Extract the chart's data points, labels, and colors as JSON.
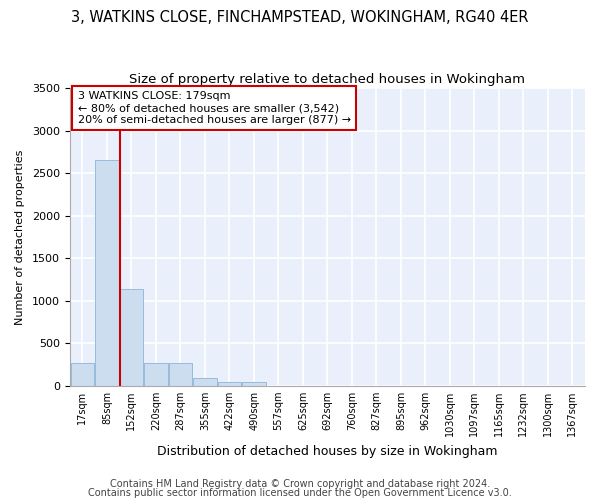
{
  "title1": "3, WATKINS CLOSE, FINCHAMPSTEAD, WOKINGHAM, RG40 4ER",
  "title2": "Size of property relative to detached houses in Wokingham",
  "xlabel": "Distribution of detached houses by size in Wokingham",
  "ylabel": "Number of detached properties",
  "bar_color": "#ccddf0",
  "bar_edge_color": "#8ab4d8",
  "annotation_line1": "3 WATKINS CLOSE: 179sqm",
  "annotation_line2": "← 80% of detached houses are smaller (3,542)",
  "annotation_line3": "20% of semi-detached houses are larger (877) →",
  "annotation_box_color": "#ffffff",
  "annotation_box_edge": "#cc0000",
  "vline_color": "#cc0000",
  "vline_x_bin": 2,
  "footer1": "Contains HM Land Registry data © Crown copyright and database right 2024.",
  "footer2": "Contains public sector information licensed under the Open Government Licence v3.0.",
  "categories": [
    "17sqm",
    "85sqm",
    "152sqm",
    "220sqm",
    "287sqm",
    "355sqm",
    "422sqm",
    "490sqm",
    "557sqm",
    "625sqm",
    "692sqm",
    "760sqm",
    "827sqm",
    "895sqm",
    "962sqm",
    "1030sqm",
    "1097sqm",
    "1165sqm",
    "1232sqm",
    "1300sqm",
    "1367sqm"
  ],
  "bar_values": [
    270,
    2650,
    1140,
    270,
    270,
    90,
    50,
    40,
    0,
    0,
    0,
    0,
    0,
    0,
    0,
    0,
    0,
    0,
    0,
    0,
    0
  ],
  "bin_starts": [
    17,
    85,
    152,
    220,
    287,
    355,
    422,
    490,
    557,
    625,
    692,
    760,
    827,
    895,
    962,
    1030,
    1097,
    1165,
    1232,
    1300,
    1367
  ],
  "bin_width": 67,
  "ylim": [
    0,
    3500
  ],
  "yticks": [
    0,
    500,
    1000,
    1500,
    2000,
    2500,
    3000,
    3500
  ],
  "bg_color": "#eaf0fb",
  "grid_color": "#ffffff",
  "title1_fontsize": 10.5,
  "title2_fontsize": 9.5,
  "footer_fontsize": 7.0
}
